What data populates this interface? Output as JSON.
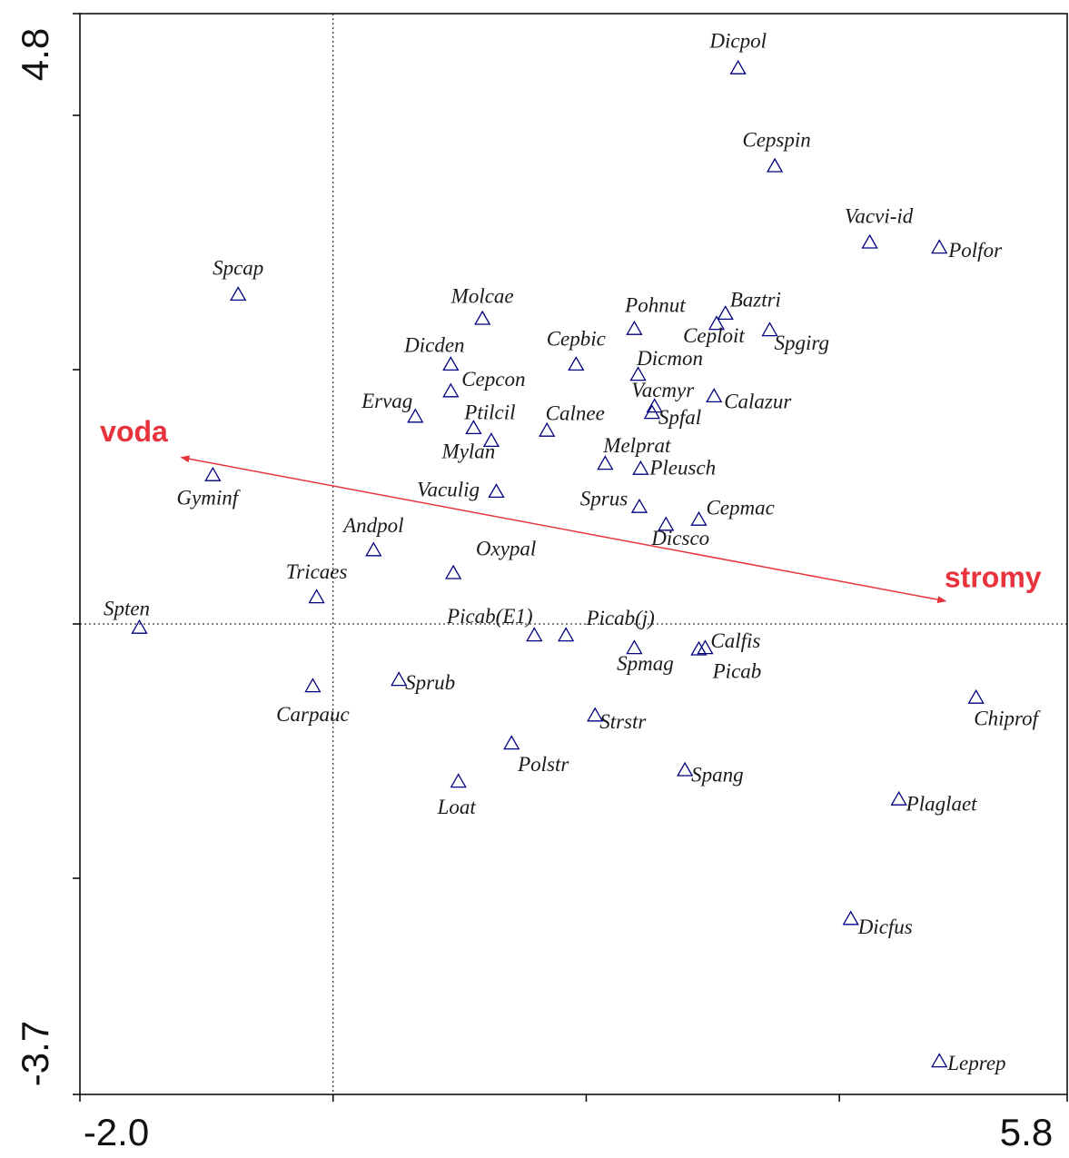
{
  "chart_data": {
    "type": "scatter",
    "xlim": [
      -2.0,
      5.8
    ],
    "ylim": [
      -3.7,
      4.8
    ],
    "xticks": [
      {
        "value": -2.0,
        "label": "-2.0"
      },
      {
        "value": 5.8,
        "label": "5.8"
      }
    ],
    "yticks": [
      {
        "value": -3.7,
        "label": "-3.7"
      },
      {
        "value": 4.8,
        "label": "4.8"
      }
    ],
    "xminorticks": [
      0,
      2,
      4
    ],
    "yminorticks": [
      -2,
      0,
      2,
      4
    ],
    "zero_lines": true,
    "marker_color": "#000080",
    "arrow_color": "#e8323c",
    "points": {
      "labels": [
        "Dicpol",
        "Cepspin",
        "Vacvi-id",
        "Polfor",
        "Spcap",
        "Molcae",
        "Baztri",
        "Pohnut",
        "Ceploit",
        "Spgirg",
        "Cepbic",
        "Dicden",
        "Dicmon",
        "Cepcon",
        "Vacmyr",
        "Calazur",
        "Spfal",
        "Ervag",
        "Ptilcil",
        "Calnee",
        "Mylan",
        "Melprat",
        "Pleusch",
        "Gyminf",
        "Vaculig",
        "Sprus",
        "Cepmac",
        "Dicsco",
        "Andpol",
        "Oxypal",
        "Tricaes",
        "Spten",
        "Picab(E1)",
        "Picab(j)",
        "Spmag",
        "Calfis",
        "Picab",
        "Sprub",
        "Carpauc",
        "Chiprof",
        "Strstr",
        "Polstr",
        "Spang",
        "Loat",
        "Plaglaet",
        "Dicfus",
        "Leprep"
      ],
      "x": [
        3.2,
        3.49,
        4.24,
        4.79,
        -0.75,
        1.18,
        3.1,
        2.38,
        3.03,
        3.45,
        1.92,
        0.93,
        2.41,
        0.93,
        2.54,
        3.01,
        2.52,
        0.65,
        1.11,
        1.69,
        1.25,
        2.15,
        2.43,
        -0.95,
        1.29,
        2.42,
        2.89,
        2.63,
        0.32,
        0.95,
        -0.13,
        -1.53,
        1.59,
        1.84,
        2.38,
        2.94,
        2.89,
        0.52,
        -0.16,
        5.08,
        2.07,
        1.41,
        2.78,
        0.99,
        4.47,
        4.09,
        4.79
      ],
      "y": [
        4.37,
        3.6,
        3.0,
        2.96,
        2.59,
        2.4,
        2.44,
        2.32,
        2.36,
        2.31,
        2.04,
        2.04,
        1.96,
        1.83,
        1.71,
        1.79,
        1.66,
        1.63,
        1.54,
        1.52,
        1.44,
        1.26,
        1.22,
        1.17,
        1.04,
        0.92,
        0.82,
        0.78,
        0.58,
        0.4,
        0.21,
        -0.03,
        -0.09,
        -0.09,
        -0.19,
        -0.19,
        -0.2,
        -0.44,
        -0.49,
        -0.58,
        -0.72,
        -0.94,
        -1.15,
        -1.24,
        -1.38,
        -2.32,
        -3.44
      ]
    },
    "arrows": [
      {
        "name": "voda",
        "x": -1.2,
        "y": 1.31
      },
      {
        "name": "stromy",
        "x": 4.84,
        "y": 0.18
      }
    ]
  }
}
